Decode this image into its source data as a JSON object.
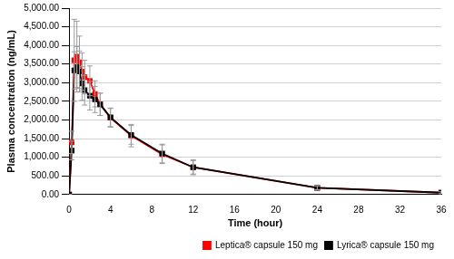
{
  "chart_data": {
    "type": "line",
    "x_label": "Time (hour)",
    "y_label": "Plasma concentration (ng/mL)",
    "x": [
      0,
      0.25,
      0.5,
      0.75,
      1,
      1.25,
      1.5,
      2,
      2.5,
      3,
      4,
      6,
      9,
      12,
      24,
      36
    ],
    "series": [
      {
        "name": "Leptica® capsule 150 mg",
        "color": "#ff0000",
        "marker": "square",
        "line_style": "solid",
        "values": [
          0,
          1400,
          3600,
          3700,
          3550,
          3300,
          3150,
          3050,
          2700,
          2420,
          2060,
          1580,
          1080,
          730,
          180,
          50
        ],
        "errors": [
          0,
          300,
          1100,
          950,
          700,
          500,
          450,
          400,
          350,
          300,
          250,
          300,
          250,
          200,
          60,
          30
        ]
      },
      {
        "name": "Lyrica® capsule 150 mg",
        "color": "#000000",
        "marker": "square",
        "line_style": "solid",
        "values": [
          0,
          1180,
          3330,
          3420,
          3300,
          2980,
          2800,
          2650,
          2550,
          2420,
          2070,
          1600,
          1100,
          730,
          180,
          50
        ],
        "errors": [
          0,
          250,
          500,
          550,
          550,
          450,
          400,
          380,
          350,
          300,
          250,
          250,
          250,
          180,
          50,
          25
        ]
      }
    ],
    "xlim": [
      0,
      36
    ],
    "xticks": [
      0,
      4,
      8,
      12,
      16,
      20,
      24,
      28,
      32,
      36
    ],
    "ylim": [
      0,
      5000
    ],
    "yticks": [
      {
        "value": 0,
        "label": "0.00"
      },
      {
        "value": 500,
        "label": "500.00"
      },
      {
        "value": 1000,
        "label": "1,000.00"
      },
      {
        "value": 1500,
        "label": "1,500.00"
      },
      {
        "value": 2000,
        "label": "2,000.00"
      },
      {
        "value": 2500,
        "label": "2,500.00"
      },
      {
        "value": 3000,
        "label": "3,000.00"
      },
      {
        "value": 3500,
        "label": "3,500.00"
      },
      {
        "value": 4000,
        "label": "4,000.00"
      },
      {
        "value": 4500,
        "label": "4,500.00"
      },
      {
        "value": 5000,
        "label": "5,000.00"
      }
    ],
    "grid": "y",
    "legend": "bottom right"
  }
}
